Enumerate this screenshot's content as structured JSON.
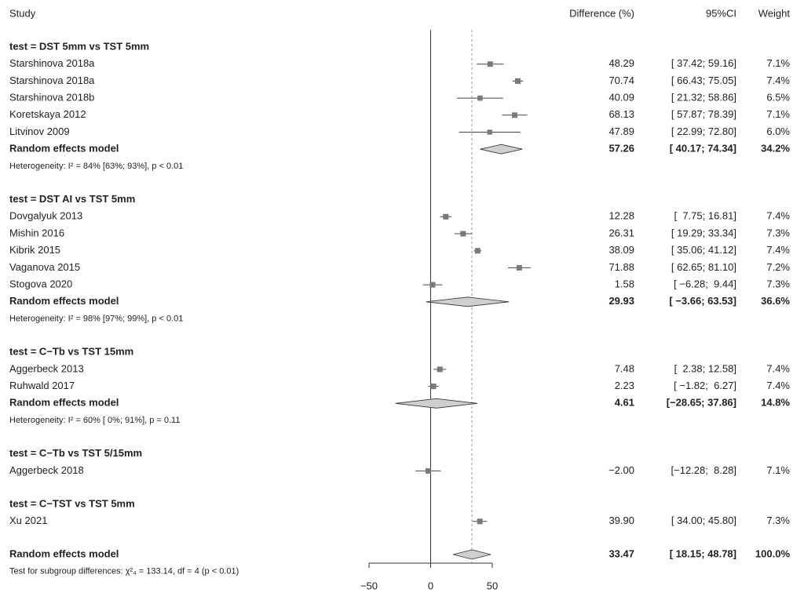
{
  "chart_data": {
    "type": "forest",
    "headers": {
      "study": "Study",
      "estimate": "Difference (%)",
      "ci": "95%CI",
      "weight": "Weight"
    },
    "groups": [
      {
        "title": "test = DST 5mm vs TST 5mm",
        "studies": [
          {
            "name": "Starshinova 2018a",
            "estimate": 48.29,
            "lower": 37.42,
            "upper": 59.16,
            "weight": 7.1,
            "estimate_label": "48.29",
            "ci_label": "[ 37.42; 59.16]",
            "weight_label": "7.1%"
          },
          {
            "name": "Starshinova 2018a",
            "estimate": 70.74,
            "lower": 66.43,
            "upper": 75.05,
            "weight": 7.4,
            "estimate_label": "70.74",
            "ci_label": "[ 66.43; 75.05]",
            "weight_label": "7.4%"
          },
          {
            "name": "Starshinova 2018b",
            "estimate": 40.09,
            "lower": 21.32,
            "upper": 58.86,
            "weight": 6.5,
            "estimate_label": "40.09",
            "ci_label": "[ 21.32; 58.86]",
            "weight_label": "6.5%"
          },
          {
            "name": "Koretskaya 2012",
            "estimate": 68.13,
            "lower": 57.87,
            "upper": 78.39,
            "weight": 7.1,
            "estimate_label": "68.13",
            "ci_label": "[ 57.87; 78.39]",
            "weight_label": "7.1%"
          },
          {
            "name": "Litvinov  2009",
            "estimate": 47.89,
            "lower": 22.99,
            "upper": 72.8,
            "weight": 6.0,
            "estimate_label": "47.89",
            "ci_label": "[ 22.99; 72.80]",
            "weight_label": "6.0%"
          }
        ],
        "random_effects": {
          "name": "Random effects model",
          "estimate": 57.26,
          "lower": 40.17,
          "upper": 74.34,
          "weight": 34.2,
          "estimate_label": "57.26",
          "ci_label": "[ 40.17; 74.34]",
          "weight_label": "34.2%"
        },
        "heterogeneity": "Heterogeneity: I² = 84% [63%; 93%], p < 0.01"
      },
      {
        "title": "test = DST AI vs TST 5mm",
        "studies": [
          {
            "name": "Dovgalyuk 2013",
            "estimate": 12.28,
            "lower": 7.75,
            "upper": 16.81,
            "weight": 7.4,
            "estimate_label": "12.28",
            "ci_label": "[  7.75; 16.81]",
            "weight_label": "7.4%"
          },
          {
            "name": "Mishin 2016",
            "estimate": 26.31,
            "lower": 19.29,
            "upper": 33.34,
            "weight": 7.3,
            "estimate_label": "26.31",
            "ci_label": "[ 19.29; 33.34]",
            "weight_label": "7.3%"
          },
          {
            "name": "Kibrik 2015",
            "estimate": 38.09,
            "lower": 35.06,
            "upper": 41.12,
            "weight": 7.4,
            "estimate_label": "38.09",
            "ci_label": "[ 35.06; 41.12]",
            "weight_label": "7.4%"
          },
          {
            "name": "Vaganova 2015",
            "estimate": 71.88,
            "lower": 62.65,
            "upper": 81.1,
            "weight": 7.2,
            "estimate_label": "71.88",
            "ci_label": "[ 62.65; 81.10]",
            "weight_label": "7.2%"
          },
          {
            "name": "Stogova 2020",
            "estimate": 1.58,
            "lower": -6.28,
            "upper": 9.44,
            "weight": 7.3,
            "estimate_label": "1.58",
            "ci_label": "[ −6.28;  9.44]",
            "weight_label": "7.3%"
          }
        ],
        "random_effects": {
          "name": "Random effects model",
          "estimate": 29.93,
          "lower": -3.66,
          "upper": 63.53,
          "weight": 36.6,
          "estimate_label": "29.93",
          "ci_label": "[ −3.66; 63.53]",
          "weight_label": "36.6%"
        },
        "heterogeneity": "Heterogeneity: I² = 98% [97%; 99%], p < 0.01"
      },
      {
        "title": "test = C−Tb vs TST 15mm",
        "studies": [
          {
            "name": "Aggerbeck 2013",
            "estimate": 7.48,
            "lower": 2.38,
            "upper": 12.58,
            "weight": 7.4,
            "estimate_label": "7.48",
            "ci_label": "[  2.38; 12.58]",
            "weight_label": "7.4%"
          },
          {
            "name": "Ruhwald 2017",
            "estimate": 2.23,
            "lower": -1.82,
            "upper": 6.27,
            "weight": 7.4,
            "estimate_label": "2.23",
            "ci_label": "[ −1.82;  6.27]",
            "weight_label": "7.4%"
          }
        ],
        "random_effects": {
          "name": "Random effects model",
          "estimate": 4.61,
          "lower": -28.65,
          "upper": 37.86,
          "weight": 14.8,
          "estimate_label": "4.61",
          "ci_label": "[−28.65; 37.86]",
          "weight_label": "14.8%"
        },
        "heterogeneity": "Heterogeneity: I² = 60% [ 0%; 91%], p = 0.11"
      },
      {
        "title": "test = C−Tb vs TST 5/15mm",
        "studies": [
          {
            "name": "Aggerbeck 2018",
            "estimate": -2.0,
            "lower": -12.28,
            "upper": 8.28,
            "weight": 7.1,
            "estimate_label": "−2.00",
            "ci_label": "[−12.28;  8.28]",
            "weight_label": "7.1%"
          }
        ]
      },
      {
        "title": "test = C−TST vs TST 5mm",
        "studies": [
          {
            "name": "Xu 2021",
            "estimate": 39.9,
            "lower": 34.0,
            "upper": 45.8,
            "weight": 7.3,
            "estimate_label": "39.90",
            "ci_label": "[ 34.00; 45.80]",
            "weight_label": "7.3%"
          }
        ]
      }
    ],
    "overall": {
      "name": "Random effects model",
      "estimate": 33.47,
      "lower": 18.15,
      "upper": 48.78,
      "weight": 100.0,
      "estimate_label": "33.47",
      "ci_label": "[ 18.15; 48.78]",
      "weight_label": "100.0%"
    },
    "subgroup_test": "Test for subgroup differences: χ²₄ = 133.14, df = 4 (p < 0.01)",
    "xlim": [
      -50,
      50
    ],
    "xticks": [
      {
        "value": -50,
        "label": "−50"
      },
      0,
      50
    ],
    "colors": {
      "marker": "#7a7a7a",
      "line": "#444444",
      "diamond": "#cfcfcf"
    }
  }
}
